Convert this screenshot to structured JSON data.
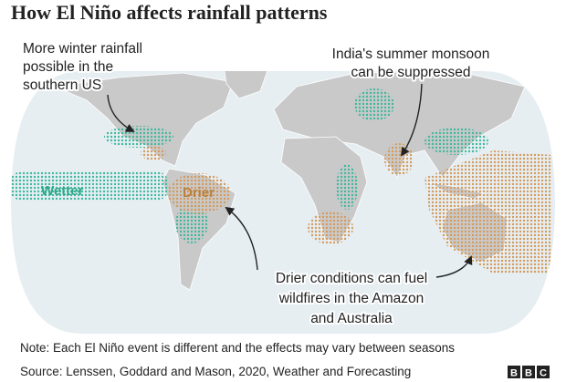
{
  "header": {
    "title": "How El Niño affects rainfall patterns"
  },
  "map": {
    "annotations": [
      {
        "lines": [
          "More winter rainfall",
          "possible in the",
          "southern US"
        ]
      },
      {
        "lines": [
          "India's summer monsoon",
          "can be suppressed"
        ]
      },
      {
        "lines": [
          "Drier conditions can fuel",
          "wildfires in the Amazon",
          "and Australia"
        ]
      }
    ],
    "labels": {
      "wetter": "Wetter",
      "drier": "Drier"
    }
  },
  "footer": {
    "note": "Note: Each El Niño event is different and the effects may vary between seasons",
    "source": "Source: Lenssen, Goddard and Mason, 2020, Weather and Forecasting",
    "logo": [
      "B",
      "B",
      "C"
    ]
  }
}
